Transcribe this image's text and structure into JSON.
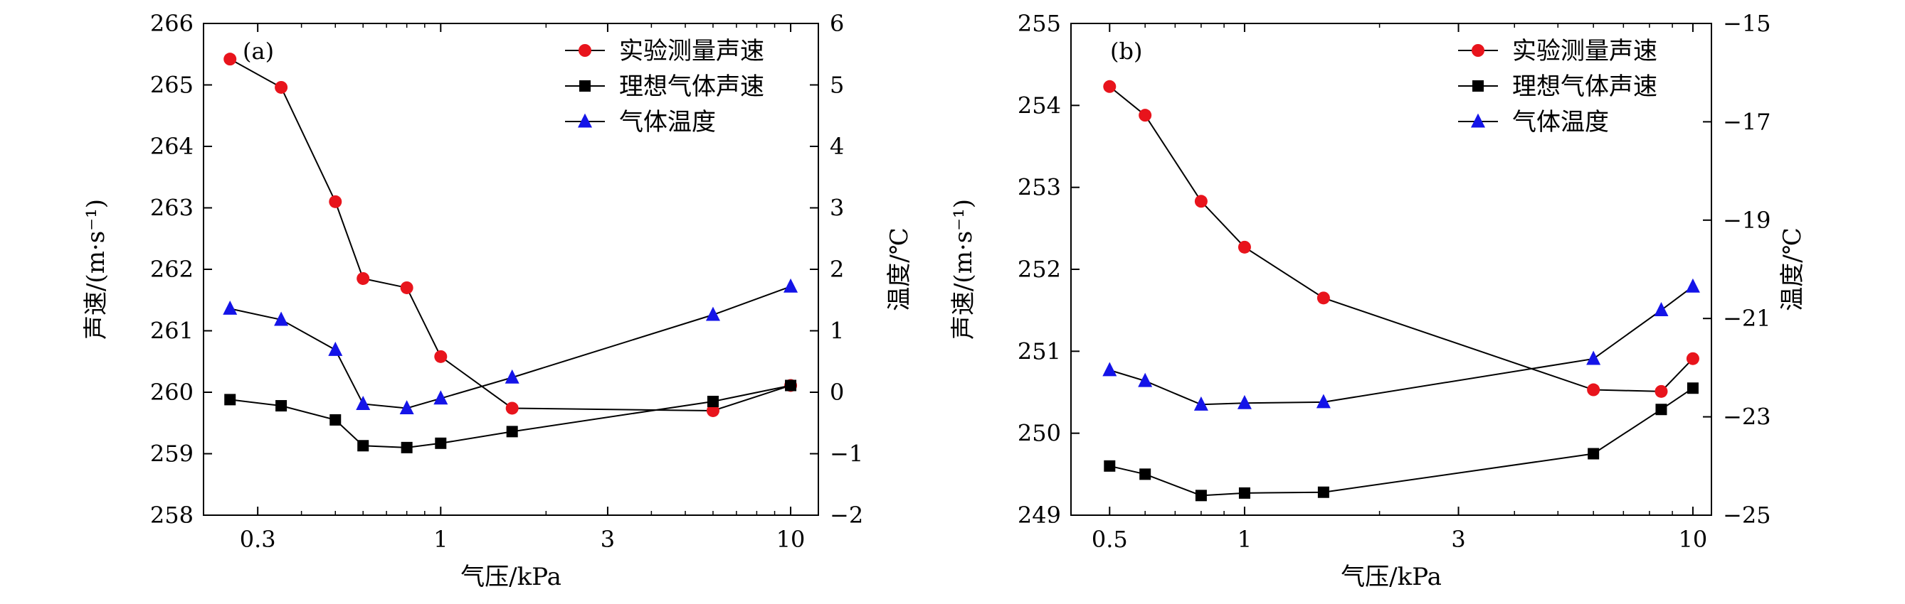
{
  "chart_data": [
    {
      "type": "line",
      "panel_label": "(a)",
      "xlabel": "气压/kPa",
      "ylabel": "声速/(m·s⁻¹)",
      "y2label": "温度/℃",
      "x_scale": "log",
      "xlim": [
        0.21,
        12.0
      ],
      "ylim": [
        258,
        266
      ],
      "y2lim": [
        -2,
        6
      ],
      "x_ticks": [
        0.3,
        1,
        3,
        10
      ],
      "x_tick_labels": [
        "0.3",
        "1",
        "3",
        "10"
      ],
      "y_ticks": [
        258,
        259,
        260,
        261,
        262,
        263,
        264,
        265,
        266
      ],
      "y2_ticks": [
        -2,
        -1,
        0,
        1,
        2,
        3,
        4,
        5,
        6
      ],
      "y2_tick_labels": [
        "−2",
        "−1",
        "0",
        "1",
        "2",
        "3",
        "4",
        "5",
        "6"
      ],
      "legend_position": "top-right",
      "series": [
        {
          "name": "实验测量声速",
          "axis": "left",
          "marker": "circle",
          "color": "#e8141c",
          "x": [
            0.25,
            0.35,
            0.5,
            0.6,
            0.8,
            1.0,
            1.6,
            6.0,
            10.0
          ],
          "y": [
            265.42,
            264.96,
            263.1,
            261.85,
            261.7,
            260.58,
            259.74,
            259.7,
            260.11
          ]
        },
        {
          "name": "理想气体声速",
          "axis": "left",
          "marker": "square",
          "color": "#000000",
          "x": [
            0.25,
            0.35,
            0.5,
            0.6,
            0.8,
            1.0,
            1.6,
            6.0,
            10.0
          ],
          "y": [
            259.88,
            259.78,
            259.55,
            259.13,
            259.1,
            259.17,
            259.36,
            259.85,
            260.11
          ]
        },
        {
          "name": "气体温度",
          "axis": "right",
          "marker": "triangle",
          "color": "#1414e8",
          "x": [
            0.25,
            0.35,
            0.5,
            0.6,
            0.8,
            1.0,
            1.6,
            6.0,
            10.0
          ],
          "y": [
            1.36,
            1.18,
            0.69,
            -0.19,
            -0.26,
            -0.1,
            0.24,
            1.26,
            1.72
          ]
        }
      ]
    },
    {
      "type": "line",
      "panel_label": "(b)",
      "xlabel": "气压/kPa",
      "ylabel": "声速/(m·s⁻¹)",
      "y2label": "温度/℃",
      "x_scale": "log",
      "xlim": [
        0.41,
        11.0
      ],
      "ylim": [
        249,
        255
      ],
      "y2lim": [
        -25,
        -15
      ],
      "x_ticks": [
        0.5,
        1,
        3,
        10
      ],
      "x_tick_labels": [
        "0.5",
        "1",
        "3",
        "10"
      ],
      "y_ticks": [
        249,
        250,
        251,
        252,
        253,
        254,
        255
      ],
      "y2_ticks": [
        -25,
        -23,
        -21,
        -19,
        -17,
        -15
      ],
      "y2_tick_labels": [
        "−25",
        "−23",
        "−21",
        "−19",
        "−17",
        "−15"
      ],
      "legend_position": "top-right",
      "series": [
        {
          "name": "实验测量声速",
          "axis": "left",
          "marker": "circle",
          "color": "#e8141c",
          "x": [
            0.5,
            0.6,
            0.8,
            1.0,
            1.5,
            6.0,
            8.5,
            10.0
          ],
          "y": [
            254.23,
            253.88,
            252.83,
            252.27,
            251.65,
            250.53,
            250.51,
            250.91
          ]
        },
        {
          "name": "理想气体声速",
          "axis": "left",
          "marker": "square",
          "color": "#000000",
          "x": [
            0.5,
            0.6,
            0.8,
            1.0,
            1.5,
            6.0,
            8.5,
            10.0
          ],
          "y": [
            249.6,
            249.5,
            249.24,
            249.27,
            249.28,
            249.75,
            250.29,
            250.55
          ]
        },
        {
          "name": "气体温度",
          "axis": "right",
          "marker": "triangle",
          "color": "#1414e8",
          "x": [
            0.5,
            0.6,
            0.8,
            1.0,
            1.5,
            6.0,
            8.5,
            10.0
          ],
          "y": [
            -22.05,
            -22.27,
            -22.75,
            -22.72,
            -22.7,
            -21.82,
            -20.83,
            -20.35
          ]
        }
      ]
    }
  ]
}
